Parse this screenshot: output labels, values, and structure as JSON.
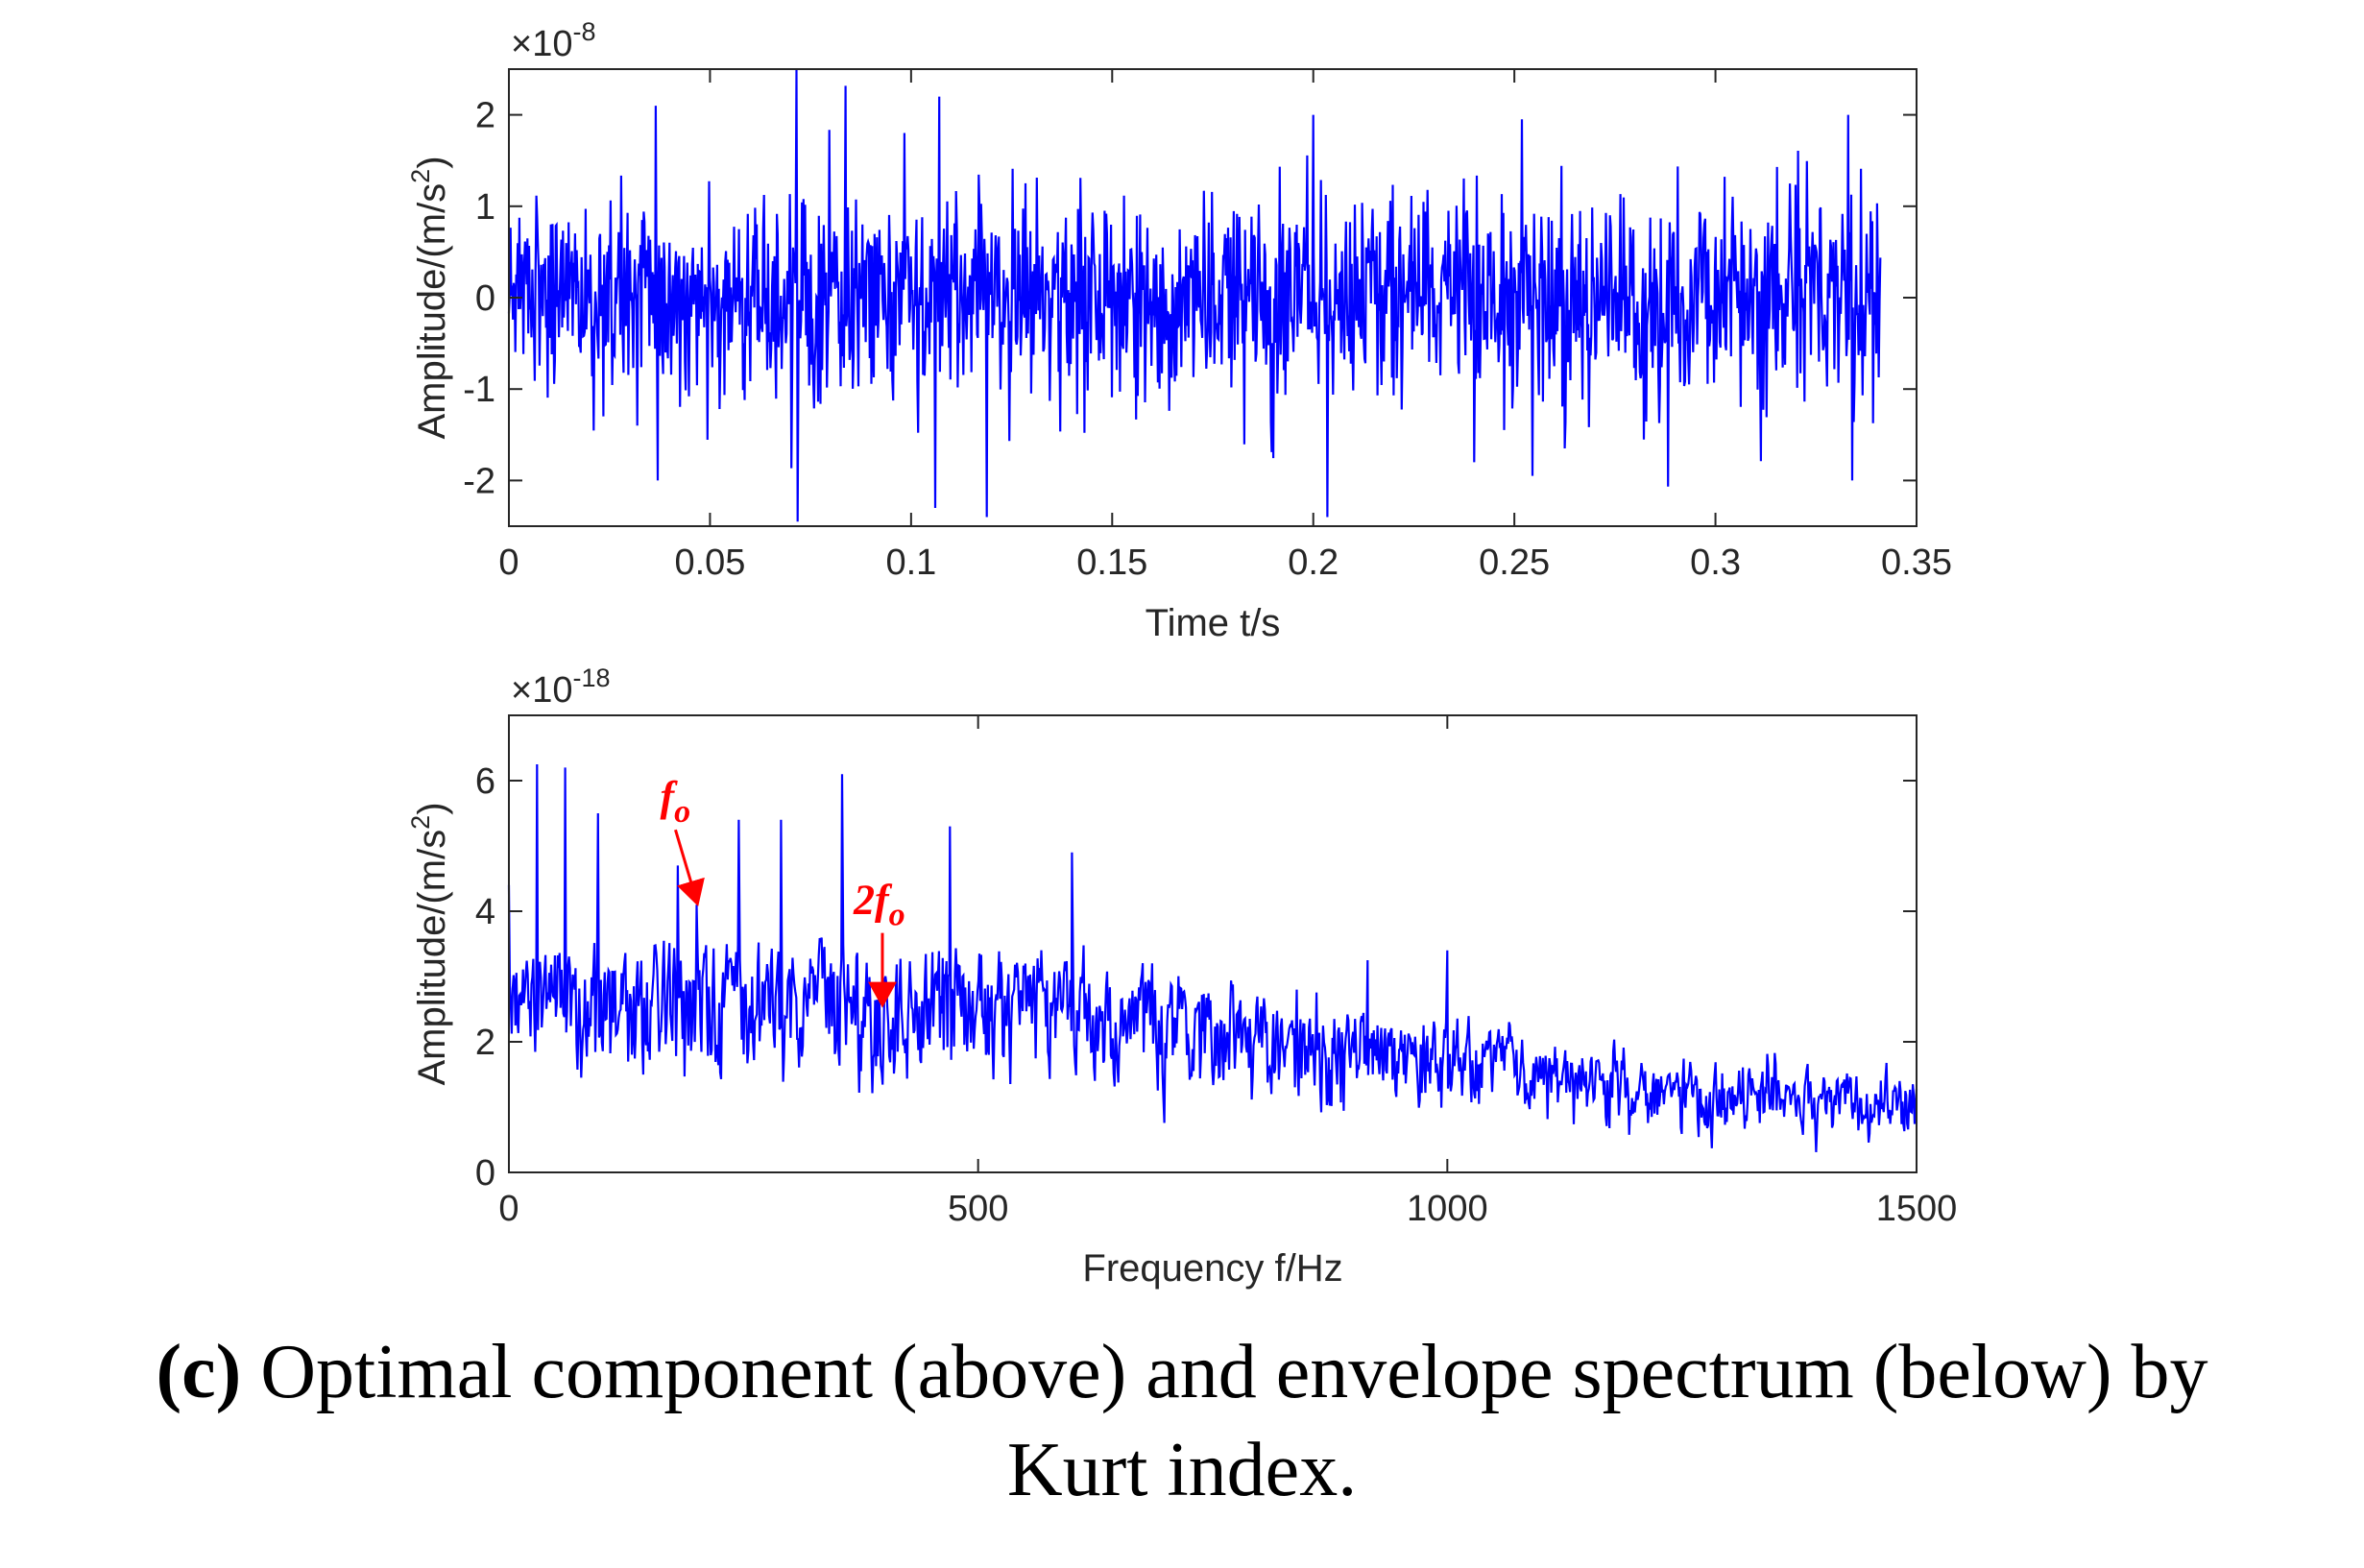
{
  "caption": {
    "label": "(c)",
    "line1": "Optimal component (above) and envelope spectrum (below) by",
    "line2": "Kurt index."
  },
  "chart_data": [
    {
      "type": "line",
      "title": "",
      "xlabel": "Time t/s",
      "ylabel": "Amplitude/(m/s",
      "ylabel_sup": "2",
      "ylabel_close": ")",
      "scale_prefix": "×10",
      "scale_exponent": "-8",
      "xlim": [
        0,
        0.35
      ],
      "ylim": [
        -2.5,
        2.5
      ],
      "xticks": [
        0,
        0.05,
        0.1,
        0.15,
        0.2,
        0.25,
        0.3,
        0.35
      ],
      "xtick_labels": [
        "0",
        "0.05",
        "0.1",
        "0.15",
        "0.2",
        "0.25",
        "0.3",
        "0.35"
      ],
      "yticks": [
        -2,
        -1,
        0,
        1,
        2
      ],
      "ytick_labels": [
        "-2",
        "-1",
        "0",
        "1",
        "2"
      ],
      "color": "#0000ff",
      "signal": {
        "description": "noisy vibration signal, roughly ±1.5e-8 with peaks near ±2.5e-8",
        "t_end": 0.341,
        "num_points": 1700,
        "peaks": [
          [
            0.0715,
            2.5
          ],
          [
            0.0718,
            -2.45
          ],
          [
            0.107,
            2.2
          ],
          [
            0.106,
            -2.3
          ],
          [
            0.0365,
            2.1
          ],
          [
            0.037,
            -2.0
          ],
          [
            0.333,
            2.0
          ],
          [
            0.334,
            -2.0
          ],
          [
            0.2,
            2.0
          ],
          [
            0.24,
            -1.8
          ]
        ]
      }
    },
    {
      "type": "line",
      "title": "",
      "xlabel": "Frequency f/Hz",
      "ylabel": "Amplitude/(m/s",
      "ylabel_sup": "2",
      "ylabel_close": ")",
      "scale_prefix": "×10",
      "scale_exponent": "-18",
      "xlim": [
        0,
        1500
      ],
      "ylim": [
        0,
        7
      ],
      "xticks": [
        0,
        500,
        1000,
        1500
      ],
      "xtick_labels": [
        "0",
        "500",
        "1000",
        "1500"
      ],
      "yticks": [
        0,
        2,
        4,
        6
      ],
      "ytick_labels": [
        "0",
        "2",
        "4",
        "6"
      ],
      "color": "#0000ff",
      "spectrum": {
        "description": "envelope spectrum, decaying from ~3 at low frequency to ~1 near 1500 Hz",
        "num_points": 1500,
        "peaks": [
          [
            30,
            6.25
          ],
          [
            60,
            6.2
          ],
          [
            355,
            6.1
          ],
          [
            95,
            5.5
          ],
          [
            290,
            5.4
          ],
          [
            470,
            5.3
          ],
          [
            245,
            5.4
          ],
          [
            180,
            4.7
          ],
          [
            200,
            4.1
          ],
          [
            600,
            4.9
          ],
          [
            1000,
            3.4
          ],
          [
            915,
            3.25
          ],
          [
            395,
            2.55
          ]
        ]
      },
      "annotations": [
        {
          "text": "f",
          "sub": "o",
          "target_x": 200,
          "target_y": 4.1
        },
        {
          "text": "2f",
          "sub": "o",
          "target_x": 398,
          "target_y": 2.55
        }
      ]
    }
  ]
}
